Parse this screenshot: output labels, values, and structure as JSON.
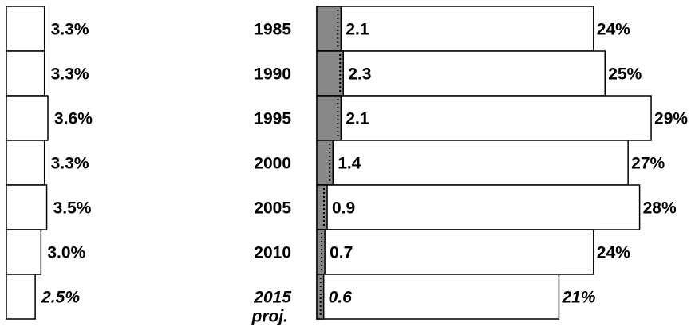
{
  "chart_data": {
    "type": "bar",
    "categories": [
      "1985",
      "1990",
      "1995",
      "2000",
      "2005",
      "2010",
      "2015"
    ],
    "category_note": "proj.",
    "series": [
      {
        "color": "#ffffff",
        "values": [
          3.3,
          3.3,
          3.6,
          3.3,
          3.5,
          3.0,
          2.5
        ],
        "value_labels": [
          "3.3%",
          "3.3%",
          "3.6%",
          "3.3%",
          "3.5%",
          "3.0%",
          "2.5%"
        ]
      },
      {
        "color": "#ffffff",
        "values": [
          24,
          25,
          29,
          27,
          28,
          24,
          21
        ],
        "value_labels": [
          "24%",
          "25%",
          "29%",
          "27%",
          "28%",
          "24%",
          "21%"
        ]
      },
      {
        "color": "#888888",
        "values": [
          2.1,
          2.3,
          2.1,
          1.4,
          0.9,
          0.7,
          0.6
        ]
      }
    ]
  }
}
